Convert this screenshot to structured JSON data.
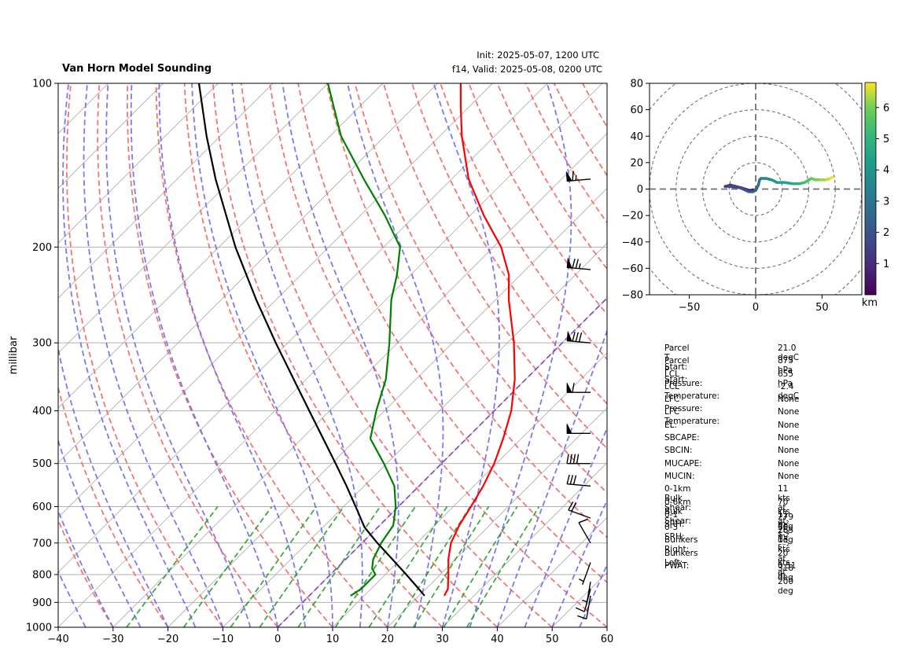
{
  "header": {
    "title": "Van Horn Model Sounding",
    "init": "Init: 2025-05-07, 1200 UTC",
    "valid": "f14, Valid: 2025-05-08, 0200 UTC"
  },
  "colors": {
    "temperature": "#ff0000",
    "dewpoint": "#008000",
    "parcel": "#000000",
    "dry_adiabat": "#f07070",
    "moist_adiabat": "#6b6bf0",
    "mixing_ratio": "#2ca02c",
    "isotherm_zero": "#8a4fcf",
    "grid": "#b0b0b0"
  },
  "chart_data": [
    {
      "type": "skew-t",
      "ylabel": "millibar",
      "xlim": [
        -40,
        60
      ],
      "ylim": [
        1000,
        100
      ],
      "x_ticks": [
        -40,
        -30,
        -20,
        -10,
        0,
        10,
        20,
        30,
        40,
        50,
        60
      ],
      "y_ticks": [
        100,
        200,
        300,
        400,
        500,
        600,
        700,
        800,
        900,
        1000
      ],
      "temperature": [
        [
          875,
          24.6
        ],
        [
          850,
          24.0
        ],
        [
          800,
          21.5
        ],
        [
          750,
          18.7
        ],
        [
          700,
          16.2
        ],
        [
          650,
          14.5
        ],
        [
          600,
          13.2
        ],
        [
          550,
          11.7
        ],
        [
          500,
          9.6
        ],
        [
          450,
          6.7
        ],
        [
          400,
          3.1
        ],
        [
          350,
          -2.0
        ],
        [
          300,
          -8.8
        ],
        [
          250,
          -17.6
        ],
        [
          225,
          -22.1
        ],
        [
          200,
          -28.6
        ],
        [
          175,
          -37.5
        ],
        [
          150,
          -46.9
        ],
        [
          125,
          -56.0
        ],
        [
          110,
          -61.7
        ],
        [
          100,
          -65.8
        ]
      ],
      "dewpoint": [
        [
          875,
          7.5
        ],
        [
          850,
          8.2
        ],
        [
          800,
          8.2
        ],
        [
          780,
          6.5
        ],
        [
          750,
          5.0
        ],
        [
          700,
          3.5
        ],
        [
          650,
          2.5
        ],
        [
          600,
          -0.5
        ],
        [
          550,
          -4.5
        ],
        [
          500,
          -10.5
        ],
        [
          450,
          -17.5
        ],
        [
          400,
          -21.5
        ],
        [
          350,
          -25.5
        ],
        [
          300,
          -31.5
        ],
        [
          250,
          -39.0
        ],
        [
          225,
          -42.5
        ],
        [
          200,
          -47.0
        ],
        [
          175,
          -55.5
        ],
        [
          150,
          -66.0
        ],
        [
          125,
          -78.0
        ],
        [
          100,
          -90.0
        ]
      ],
      "parcel": [
        [
          875,
          21.0
        ],
        [
          850,
          18.7
        ],
        [
          800,
          13.8
        ],
        [
          750,
          8.5
        ],
        [
          700,
          2.8
        ],
        [
          655,
          -2.4
        ],
        [
          600,
          -7.8
        ],
        [
          550,
          -13.2
        ],
        [
          500,
          -19.3
        ],
        [
          450,
          -26.1
        ],
        [
          400,
          -33.7
        ],
        [
          350,
          -42.3
        ],
        [
          300,
          -52.2
        ],
        [
          250,
          -63.6
        ],
        [
          200,
          -77.0
        ],
        [
          150,
          -93.0
        ],
        [
          125,
          -102.5
        ],
        [
          100,
          -113.5
        ]
      ],
      "wind_barbs": [
        {
          "p": 875,
          "speed_kts": 8,
          "dir_deg": 190
        },
        {
          "p": 850,
          "speed_kts": 8,
          "dir_deg": 195
        },
        {
          "p": 825,
          "speed_kts": 7,
          "dir_deg": 190
        },
        {
          "p": 760,
          "speed_kts": 3,
          "dir_deg": 200
        },
        {
          "p": 700,
          "speed_kts": 10,
          "dir_deg": 330
        },
        {
          "p": 630,
          "speed_kts": 20,
          "dir_deg": 290
        },
        {
          "p": 550,
          "speed_kts": 30,
          "dir_deg": 275
        },
        {
          "p": 500,
          "speed_kts": 40,
          "dir_deg": 270
        },
        {
          "p": 440,
          "speed_kts": 50,
          "dir_deg": 270
        },
        {
          "p": 370,
          "speed_kts": 60,
          "dir_deg": 270
        },
        {
          "p": 300,
          "speed_kts": 80,
          "dir_deg": 275
        },
        {
          "p": 220,
          "speed_kts": 75,
          "dir_deg": 275
        },
        {
          "p": 150,
          "speed_kts": 65,
          "dir_deg": 265
        }
      ]
    },
    {
      "type": "hodograph",
      "xlim": [
        -80,
        80
      ],
      "ylim": [
        -80,
        80
      ],
      "x_ticks": [
        -50,
        0,
        50
      ],
      "y_ticks": [
        -80,
        -60,
        -40,
        -20,
        0,
        20,
        40,
        60,
        80
      ],
      "rings": [
        20,
        40,
        60,
        80,
        100
      ],
      "colorbar": {
        "label": "km",
        "ticks": [
          1,
          2,
          3,
          4,
          5,
          6
        ],
        "range": [
          0,
          6.8
        ],
        "colormap": "viridis"
      },
      "points": [
        [
          -2,
          -1,
          0.0
        ],
        [
          -5,
          -1,
          0.3
        ],
        [
          -8,
          0,
          0.6
        ],
        [
          -11,
          1,
          0.8
        ],
        [
          -15,
          2,
          1.0
        ],
        [
          -19,
          3,
          1.2
        ],
        [
          -23,
          2,
          1.4
        ],
        [
          -20,
          2,
          1.6
        ],
        [
          -12,
          1,
          1.8
        ],
        [
          -5,
          -2,
          2.0
        ],
        [
          -2,
          -2,
          2.2
        ],
        [
          0,
          -1,
          2.4
        ],
        [
          2,
          3,
          2.7
        ],
        [
          3,
          7,
          3.0
        ],
        [
          4,
          8,
          3.2
        ],
        [
          8,
          8,
          3.5
        ],
        [
          12,
          7,
          3.8
        ],
        [
          16,
          5,
          4.1
        ],
        [
          22,
          5,
          4.4
        ],
        [
          28,
          4,
          4.7
        ],
        [
          33,
          4,
          5.0
        ],
        [
          37,
          5,
          5.3
        ],
        [
          42,
          8,
          5.6
        ],
        [
          45,
          7,
          5.9
        ],
        [
          49,
          7,
          6.1
        ],
        [
          53,
          7,
          6.3
        ],
        [
          56,
          8,
          6.6
        ],
        [
          58,
          9,
          6.8
        ]
      ]
    }
  ],
  "params": [
    {
      "label": "Parcel T Start:",
      "value": "21.0 degC"
    },
    {
      "label": "Parcel P Start:",
      "value": "875 hPa"
    },
    {
      "label": "LCL Pressure:",
      "value": "655 hPa"
    },
    {
      "label": "LCL Temperature:",
      "value": "-2.4 degC"
    },
    {
      "label": "LFC Pressure:",
      "value": "None"
    },
    {
      "label": "LFC Temperature:",
      "value": "None"
    },
    {
      "label": "EL:",
      "value": "None"
    },
    {
      "label": "SBCAPE:",
      "value": "None"
    },
    {
      "label": "SBCIN:",
      "value": "None"
    },
    {
      "label": "MUCAPE:",
      "value": "None"
    },
    {
      "label": "MUCIN:",
      "value": "None"
    },
    {
      "label": "0-1km Bulk Shear:",
      "value": "11 kts at 279 deg"
    },
    {
      "label": "0-6km Bulk Shear:",
      "value": "70 kts at 265 deg"
    },
    {
      "label": "0-1 SRH:",
      "value": "11 m² s⁻²"
    },
    {
      "label": "0-3 SRH:",
      "value": "50 m² s⁻²"
    },
    {
      "label": "Bunkers Right:",
      "value": "13 kts at 318 deg"
    },
    {
      "label": "Bunkers Left:",
      "value": "20 kts at 200 deg"
    },
    {
      "label": "PWAT:",
      "value": "0.51 in"
    }
  ]
}
